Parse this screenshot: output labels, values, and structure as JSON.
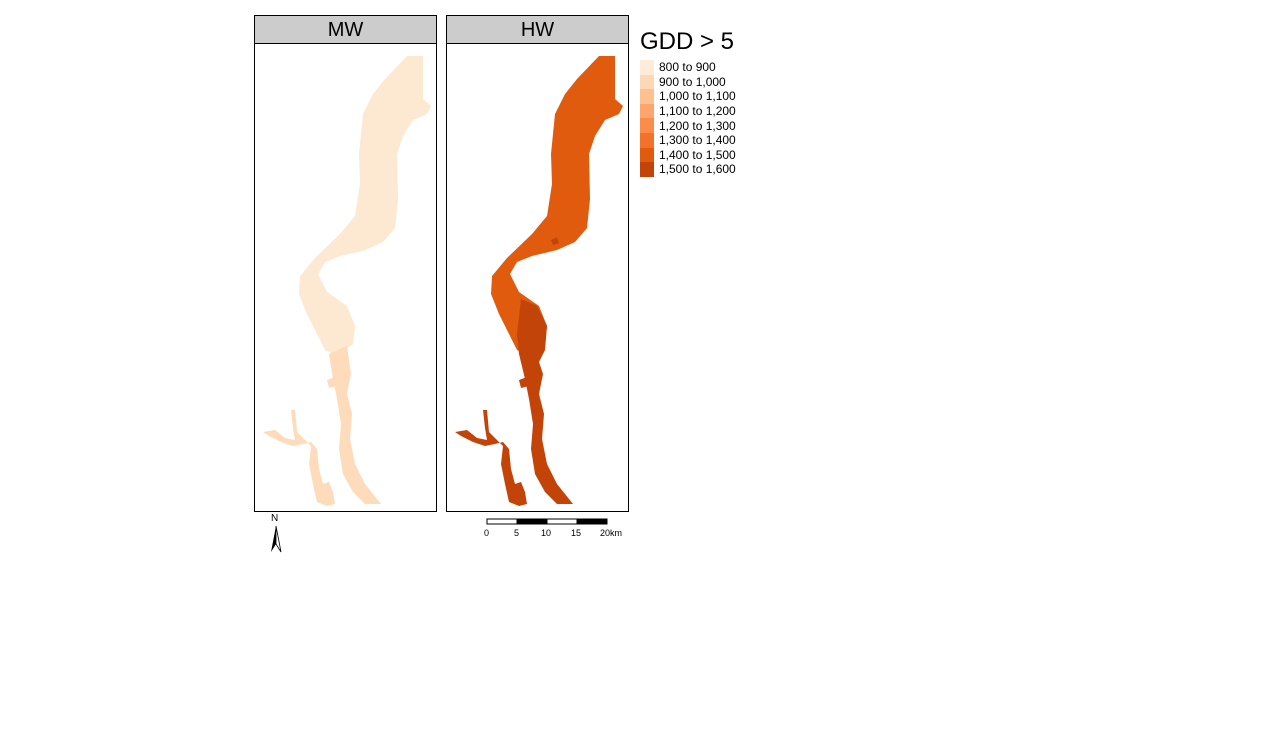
{
  "panels": [
    {
      "label": "MW",
      "fill": "#fde8d2",
      "fill_alt": "#fddbbb"
    },
    {
      "label": "HW",
      "fill": "#e05b0e",
      "fill_alt": "#c24408"
    }
  ],
  "legend": {
    "title": "GDD > 5",
    "items": [
      {
        "label": "800 to 900",
        "color": "#feebd8"
      },
      {
        "label": "900 to 1,000",
        "color": "#fdd8b4"
      },
      {
        "label": "1,000 to 1,100",
        "color": "#fdc08f"
      },
      {
        "label": "1,100 to 1,200",
        "color": "#fda56a"
      },
      {
        "label": "1,200 to 1,300",
        "color": "#fb8c4a"
      },
      {
        "label": "1,300 to 1,400",
        "color": "#f2722c"
      },
      {
        "label": "1,400 to 1,500",
        "color": "#e05b0e"
      },
      {
        "label": "1,500 to 1,600",
        "color": "#c24408"
      }
    ]
  },
  "north_arrow": {
    "label": "N"
  },
  "scale_bar": {
    "ticks": [
      "0",
      "5",
      "10",
      "15",
      "20km"
    ]
  }
}
